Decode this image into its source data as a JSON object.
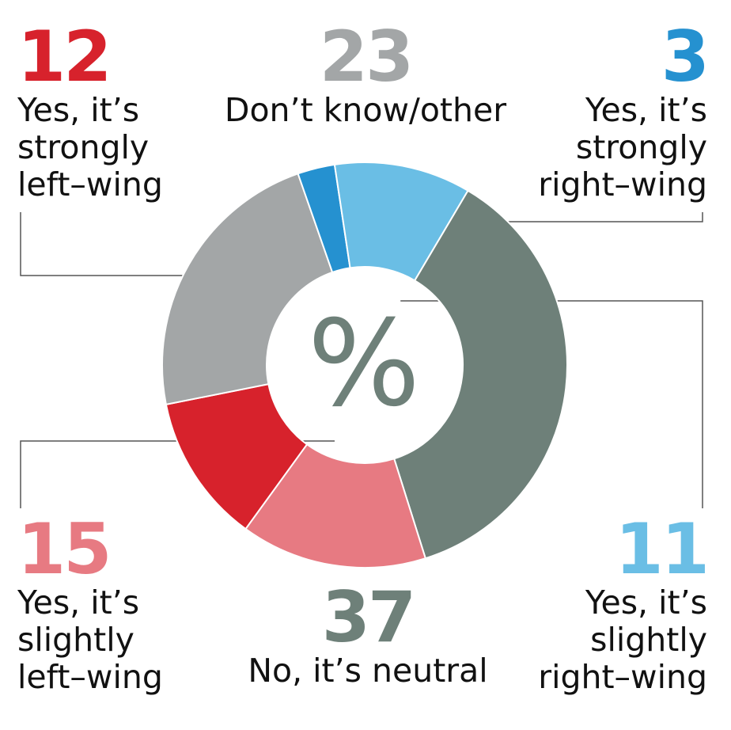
{
  "chart_data": {
    "type": "pie",
    "center_label": "%",
    "segments": [
      {
        "key": "strongly_left",
        "value": 12,
        "value_label": "12",
        "label": "Yes, it’s\nstrongly\nleft–wing",
        "color": "#d7222c"
      },
      {
        "key": "dont_know",
        "value": 23,
        "value_label": "23",
        "label": "Don’t know/other",
        "color": "#a3a6a7"
      },
      {
        "key": "strongly_right",
        "value": 3,
        "value_label": "3",
        "label": "Yes, it’s\nstrongly\nright–wing",
        "color": "#2591d0"
      },
      {
        "key": "slightly_right",
        "value": 11,
        "value_label": "11",
        "label": "Yes, it’s\nslightly\nright–wing",
        "color": "#6abee5"
      },
      {
        "key": "neutral",
        "value": 37,
        "value_label": "37",
        "label": "No, it’s neutral",
        "color": "#6e8079"
      },
      {
        "key": "slightly_left",
        "value": 15,
        "value_label": "15",
        "label": "Yes, it’s\nslightly\nleft–wing",
        "color": "#e77a82"
      }
    ]
  }
}
